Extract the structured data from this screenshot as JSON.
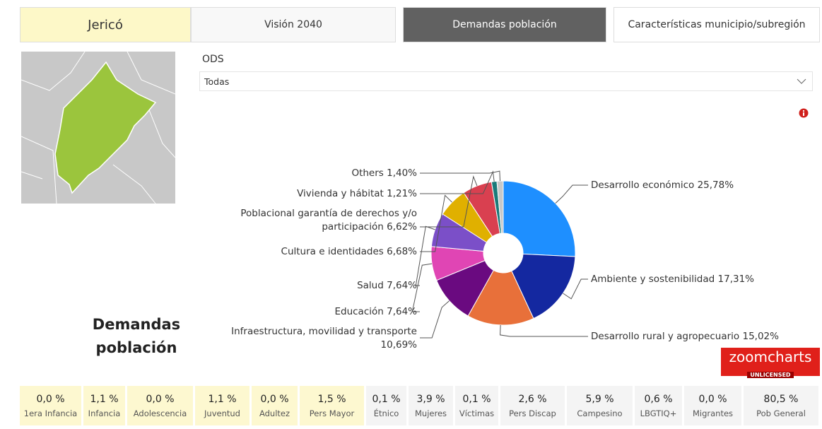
{
  "tabs": [
    "Jericó",
    "Visión 2040",
    "Demandas población",
    "Características municipio/subregión"
  ],
  "filter": {
    "label": "ODS",
    "value": "Todas"
  },
  "side_title": "Demandas población",
  "watermark": {
    "text": "zoomcharts",
    "sub": "UNLICENSED"
  },
  "chart_data": {
    "type": "pie",
    "categories": [
      "Desarrollo económico",
      "Ambiente y sostenibilidad",
      "Desarrollo rural y agropecuario",
      "Infraestructura, movilidad y transporte",
      "Educación",
      "Salud",
      "Cultura e identidades",
      "Poblacional garantía de derechos y/o participación",
      "Vivienda y hábitat",
      "Others"
    ],
    "values": [
      25.78,
      17.31,
      15.02,
      10.69,
      7.64,
      7.64,
      6.68,
      6.62,
      1.21,
      1.4
    ],
    "value_labels": [
      "25,78%",
      "17,31%",
      "15,02%",
      "10,69%",
      "7,64%",
      "7,64%",
      "6,68%",
      "6,62%",
      "1,21%",
      "1,40%"
    ],
    "colors": [
      "#1e8fff",
      "#1428a0",
      "#e8703a",
      "#6a0a80",
      "#e045b4",
      "#7b4fc8",
      "#e0b000",
      "#d94050",
      "#1a7a7a",
      "#c8c8c8"
    ]
  },
  "stats": [
    {
      "value": "0,0 %",
      "label": "1era Infancia"
    },
    {
      "value": "1,1 %",
      "label": "Infancia"
    },
    {
      "value": "0,0 %",
      "label": "Adolescencia"
    },
    {
      "value": "1,1 %",
      "label": "Juventud"
    },
    {
      "value": "0,0 %",
      "label": "Adultez"
    },
    {
      "value": "1,5 %",
      "label": "Pers Mayor"
    },
    {
      "value": "0,1 %",
      "label": "Étnico"
    },
    {
      "value": "3,9 %",
      "label": "Mujeres"
    },
    {
      "value": "0,1 %",
      "label": "Víctimas"
    },
    {
      "value": "2,6 %",
      "label": "Pers Discap"
    },
    {
      "value": "5,9 %",
      "label": "Campesino"
    },
    {
      "value": "0,6 %",
      "label": "LBGTIQ+"
    },
    {
      "value": "0,0 %",
      "label": "Migrantes"
    },
    {
      "value": "80,5 %",
      "label": "Pob General"
    }
  ]
}
